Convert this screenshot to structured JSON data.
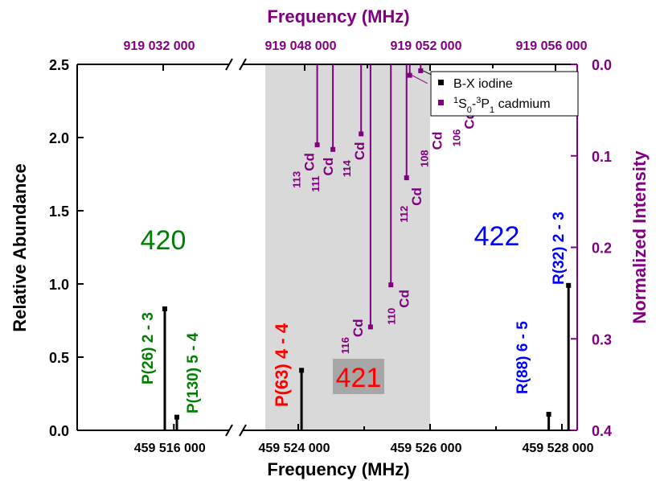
{
  "chart_data": {
    "type": "bar",
    "title": "",
    "xlabel_bottom": "Frequency (MHz)",
    "xlabel_top": "Frequency (MHz)",
    "ylabel_left": "Relative Abundance",
    "ylabel_right": "Normalized Intensity",
    "left_axis": {
      "ylim": [
        0,
        2.5
      ],
      "ticks": [
        0.0,
        0.5,
        1.0,
        1.5,
        2.0,
        2.5
      ],
      "tick_labels": [
        "0.0",
        "0.5",
        "1.0",
        "1.5",
        "2.0",
        "2.5"
      ]
    },
    "right_axis": {
      "ylim": [
        0.4,
        0.0
      ],
      "inverted": true,
      "ticks": [
        0.0,
        0.1,
        0.2,
        0.3,
        0.4
      ],
      "tick_labels": [
        "0.0",
        "0.1",
        "0.2",
        "0.3",
        "0.4"
      ]
    },
    "bottom_axis": {
      "broken": true,
      "tick_labels": [
        "459 516 000",
        "459 524 000",
        "459 526 000",
        "459 528 000"
      ]
    },
    "top_axis": {
      "broken": true,
      "tick_labels": [
        "919 032 000",
        "919 048 000",
        "919 052 000",
        "919 056 000"
      ]
    },
    "legend": {
      "placement": "top-right",
      "entries": [
        {
          "label_text": "B-X  iodine",
          "color": "#000000"
        },
        {
          "label_pre": "1",
          "label_mid": "S",
          "label_sub": "0",
          "label_dash": "-",
          "label_pre2": "3",
          "label_mid2": "P",
          "label_sub2": "1",
          "label_post": " cadmium",
          "color": "#800080"
        }
      ]
    },
    "region_labels": [
      {
        "text": "420",
        "color": "#008000"
      },
      {
        "text": "421",
        "color": "#ff0000"
      },
      {
        "text": "422",
        "color": "#0000ff"
      }
    ],
    "shaded_region": {
      "color": "#d9d9d9",
      "x_range_bottom": [
        459523500,
        459526000
      ]
    },
    "iodine_series": {
      "name": "B-X  iodine",
      "color": "#000000",
      "lines": [
        {
          "x": 459515850,
          "y": 0.83,
          "label": "P(26) 2 - 3",
          "label_color": "#008000"
        },
        {
          "x": 459516050,
          "y": 0.09,
          "label": "P(130) 5 - 4",
          "label_color": "#008000"
        },
        {
          "x": 459524050,
          "y": 0.41,
          "label": "P(63) 4 - 4",
          "label_color": "#ff0000"
        },
        {
          "x": 459527800,
          "y": 0.11,
          "label": "R(88) 6 - 5",
          "label_color": "#0000ff"
        },
        {
          "x": 459528100,
          "y": 0.99,
          "label": "R(32) 2 - 3",
          "label_color": "#0000ff"
        }
      ]
    },
    "cadmium_series": {
      "name": "1S0-3P1 cadmium",
      "color": "#800080",
      "lines": [
        {
          "x": 919048400,
          "y": 0.088,
          "mass": "113",
          "elem": "Cd"
        },
        {
          "x": 919048900,
          "y": 0.093,
          "mass": "111",
          "elem": "Cd"
        },
        {
          "x": 919049800,
          "y": 0.076,
          "mass": "114",
          "elem": "Cd"
        },
        {
          "x": 919050100,
          "y": 0.287,
          "mass": "116",
          "elem": "Cd"
        },
        {
          "x": 919050750,
          "y": 0.241,
          "mass": "110",
          "elem": "Cd"
        },
        {
          "x": 919051250,
          "y": 0.124,
          "mass": "112",
          "elem": "Cd"
        },
        {
          "x": 919051350,
          "y": 0.012,
          "mass": "108",
          "elem": "Cd"
        },
        {
          "x": 919051700,
          "y": 0.007,
          "mass": "106",
          "elem": "Cd"
        }
      ]
    }
  }
}
